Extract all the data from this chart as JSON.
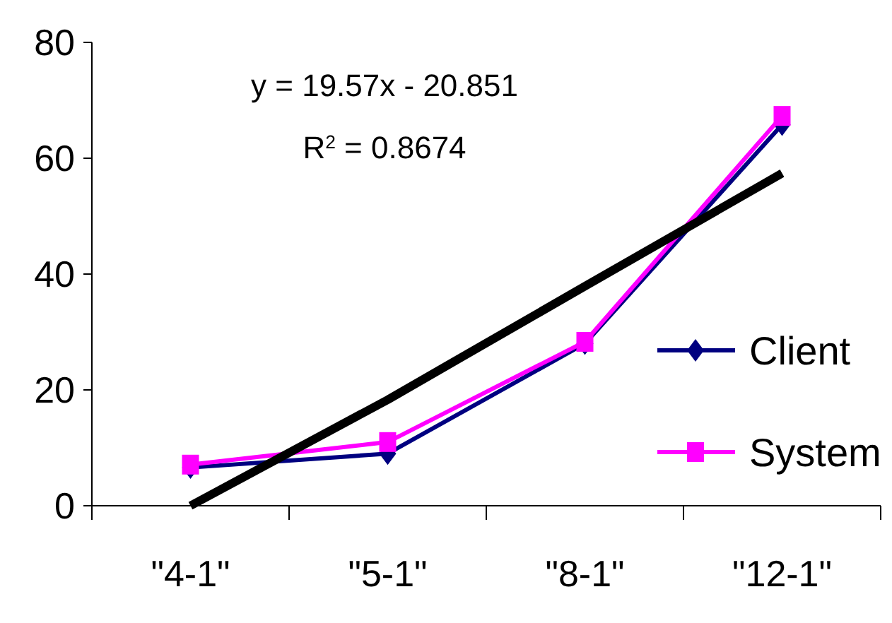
{
  "chart_data": {
    "type": "line",
    "categories": [
      "\"4-1\"",
      "\"5-1\"",
      "\"8-1\"",
      "\"12-1\""
    ],
    "series": [
      {
        "name": "Client",
        "color": "#000080",
        "marker": "diamond",
        "values": [
          6.6,
          9,
          28,
          65.8
        ]
      },
      {
        "name": "System",
        "color": "#ff00ff",
        "marker": "square",
        "values": [
          7.1,
          11,
          28.3,
          67.3
        ]
      },
      {
        "type": "line",
        "color": "#000000",
        "marker": "none",
        "values": [
          0,
          18.3,
          37.9,
          57.4
        ]
      }
    ],
    "ylim": [
      0,
      80
    ],
    "yticks": [
      0,
      20,
      40,
      60,
      80
    ],
    "grid": false,
    "legend": "right",
    "annotations": [
      "y = 19.57x - 20.851",
      "R$^{2}$ = 0.8674"
    ]
  }
}
